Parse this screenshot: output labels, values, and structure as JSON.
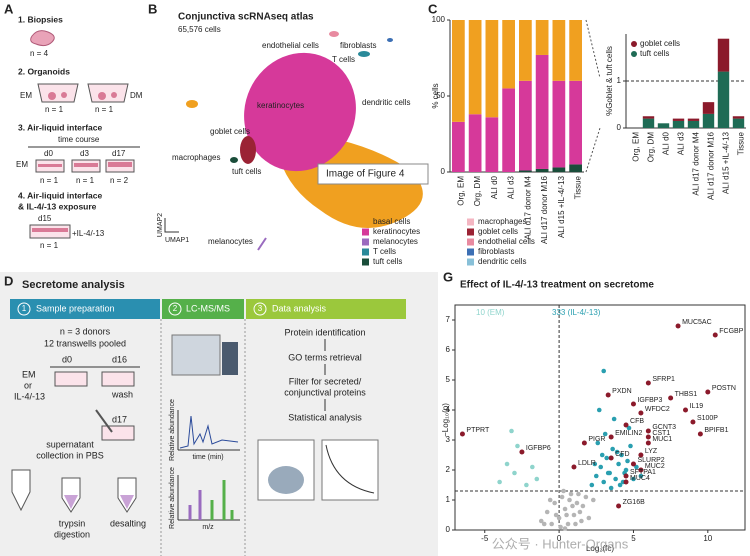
{
  "panelA": {
    "letter": "A",
    "step1": "1. Biopsies",
    "n1": "n = 4",
    "step2": "2. Organoids",
    "em": "EM",
    "dm": "DM",
    "n2a": "n = 1",
    "n2b": "n = 1",
    "step3": "3. Air-liquid interface",
    "timecourse": "time course",
    "em3": "EM",
    "d0": "d0",
    "d3": "d3",
    "d17": "d17",
    "n3a": "n = 1",
    "n3b": "n = 1",
    "n3c": "n = 2",
    "step4": [
      "4. Air-liquid interface",
      "& IL-4/-13 exposure"
    ],
    "d15": "d15",
    "il": "+IL-4/-13",
    "n4": "n = 1"
  },
  "panelB": {
    "letter": "B",
    "title": "Conjunctiva scRNAseq atlas",
    "subtitle": "65,576 cells",
    "clusters": [
      "endothelial cells",
      "fibroblasts",
      "T cells",
      "dendritic cells",
      "keratinocytes",
      "goblet cells",
      "macrophages",
      "tuft cells",
      "melanocytes"
    ],
    "tooltip": "Image of Figure 4",
    "umap2": "UMAP2",
    "umap1": "UMAP1",
    "legend": [
      {
        "name": "basal cells",
        "color": "#f0a020"
      },
      {
        "name": "keratinocytes",
        "color": "#d6399a"
      },
      {
        "name": "melanocytes",
        "color": "#9a6bbf"
      },
      {
        "name": "T cells",
        "color": "#2a8a9a"
      },
      {
        "name": "tuft cells",
        "color": "#1a4d3a"
      },
      {
        "name": "macrophages",
        "color": "#f4b6c2"
      },
      {
        "name": "goblet cells",
        "color": "#9b2335"
      },
      {
        "name": "endothelial cells",
        "color": "#e88aa0"
      },
      {
        "name": "fibroblasts",
        "color": "#3c6fb4"
      },
      {
        "name": "dendritic cells",
        "color": "#88c0d8"
      }
    ]
  },
  "panelC": {
    "letter": "C"
  },
  "chart_data": [
    {
      "type": "bar",
      "stacked": true,
      "ylabel": "% cells",
      "categories": [
        "Org, EM",
        "Org, DM",
        "ALI d0",
        "ALI d3",
        "ALI d17 donor M4",
        "ALI d17 donor M16",
        "ALI d15 +IL-4/-13",
        "Tissue"
      ],
      "series": [
        {
          "color": "#1a4d3a",
          "values": [
            0,
            0,
            0,
            0,
            1,
            2,
            3,
            5
          ]
        },
        {
          "color": "#d6399a",
          "values": [
            33,
            38,
            36,
            55,
            59,
            75,
            57,
            55
          ]
        },
        {
          "color": "#f0a020",
          "values": [
            67,
            62,
            64,
            45,
            40,
            23,
            40,
            40
          ]
        }
      ],
      "ylim": [
        0,
        100
      ],
      "yticks": [
        0,
        50,
        100
      ]
    },
    {
      "type": "bar",
      "stacked": true,
      "ylabel": "%Goblet & tuft cells",
      "categories": [
        "Org, EM",
        "Org, DM",
        "ALI d0",
        "ALI d3",
        "ALI d17 donor M4",
        "ALI d17 donor M16",
        "ALI d15 +IL-4/-13",
        "Tissue"
      ],
      "series": [
        {
          "name": "tuft cells",
          "color": "#1f6b55",
          "values": [
            0,
            0.2,
            0.1,
            0.15,
            0.15,
            0.3,
            1.2,
            0.2
          ]
        },
        {
          "name": "goblet cells",
          "color": "#8b1a2b",
          "values": [
            0,
            0.05,
            0,
            0.05,
            0.05,
            0.25,
            0.7,
            0.05
          ]
        }
      ],
      "ylim": [
        0,
        2
      ],
      "yticks": [
        0,
        1
      ],
      "hline": 1,
      "legend": "top-left"
    },
    {
      "type": "scatter",
      "title": "Effect of IL-4/-13 treatment on secretome",
      "xlabel": "Log₂(fc)",
      "ylabel": "−Log₁₀(p)",
      "count_down": "10 (EM)",
      "count_up": "333 (IL-4/-13)",
      "xlim": [
        -7,
        12.5
      ],
      "xticks": [
        -5,
        0,
        5,
        10
      ],
      "ylim": [
        0,
        7.5
      ],
      "yticks": [
        0,
        1,
        2,
        3,
        4,
        5,
        6,
        7
      ],
      "hline": 1.3,
      "vline": 0,
      "series": [
        {
          "color": "#b5b5b5",
          "x": [
            -1.2,
            -0.8,
            -0.5,
            -0.3,
            0,
            0.2,
            0.4,
            0.6,
            0.8,
            1,
            1.2,
            1.5,
            1.8,
            -0.6,
            0.1,
            0.5,
            0.9,
            1.4,
            -1,
            0.3,
            0.7,
            1.1,
            -0.2,
            1.6,
            2,
            2.3,
            0.4,
            1.3
          ],
          "values": [
            0.3,
            0.6,
            0.2,
            0.9,
            0.4,
            1.1,
            0.7,
            0.2,
            1.2,
            0.5,
            0.9,
            0.3,
            1.1,
            1,
            0.1,
            0.5,
            0.8,
            0.6,
            0.2,
            1.3,
            1,
            0.2,
            0.5,
            0.8,
            0.4,
            1,
            0.05,
            1.2
          ]
        },
        {
          "color": "#2a9fb0",
          "x": [
            2.2,
            2.5,
            2.8,
            3,
            3.2,
            3.4,
            3.6,
            3.8,
            4,
            4.2,
            4.4,
            4.6,
            4.8,
            5,
            5.2,
            2.6,
            3.1,
            3.5,
            3.9,
            4.3,
            4.7,
            2.4,
            3.3,
            3.7,
            4.1,
            2.9,
            4.5,
            5.5,
            3.0,
            2.7
          ],
          "values": [
            1.5,
            1.8,
            2.1,
            1.6,
            2.4,
            1.9,
            2.7,
            1.7,
            2.2,
            2.5,
            1.9,
            2.3,
            2.8,
            1.7,
            2.1,
            2.9,
            3.2,
            1.4,
            2.6,
            1.6,
            3.4,
            2.2,
            1.9,
            3.7,
            1.5,
            2.5,
            2.0,
            1.8,
            5.3,
            4.0
          ]
        },
        {
          "color": "#8fd4cc",
          "x": [
            -4,
            -3.5,
            -3,
            -2.8,
            -2.2,
            -1.8,
            -1.5,
            -3.2
          ],
          "values": [
            1.6,
            2.2,
            1.9,
            2.8,
            1.5,
            2.1,
            1.7,
            3.3
          ]
        }
      ],
      "labeled": {
        "color": "#8b1a2b",
        "labels": [
          "MUC5AC",
          "FCGBP",
          "SFRP1",
          "POSTN",
          "THBS1",
          "PXDN",
          "IGFBP3",
          "IL19",
          "WFDC2",
          "S100P",
          "CFB",
          "GCNT3",
          "BPIFB1",
          "EMILIN2",
          "CST1",
          "PIGR",
          "MUC1",
          "LYZ",
          "CFD",
          "SLURP2",
          "MUC2",
          "SFTPA1",
          "MUC4",
          "LDLR",
          "ZG16B",
          "PTPRT",
          "IGFBP6"
        ],
        "x": [
          8,
          10.5,
          6,
          10,
          7.5,
          3.3,
          5,
          8.5,
          5.5,
          9,
          4.5,
          6,
          9.5,
          3.5,
          6,
          1.7,
          6,
          5.5,
          3.5,
          5,
          5.5,
          4.5,
          4.5,
          1,
          4,
          -6.5,
          -2.5
        ],
        "values": [
          6.8,
          6.5,
          4.9,
          4.6,
          4.4,
          4.5,
          4.2,
          4,
          3.9,
          3.6,
          3.5,
          3.3,
          3.2,
          3.1,
          3.1,
          2.9,
          2.9,
          2.5,
          2.4,
          2.2,
          2,
          1.8,
          1.6,
          2.1,
          0.8,
          3.2,
          2.6
        ]
      }
    }
  ],
  "panelD": {
    "letter": "D",
    "title": "Secretome analysis",
    "steps": [
      {
        "num": "1",
        "label": "Sample preparation"
      },
      {
        "num": "2",
        "label": "LC-MS/MS"
      },
      {
        "num": "3",
        "label": "Data analysis"
      }
    ],
    "donors": "n = 3 donors",
    "pooled": "12 transwells pooled",
    "d0": "d0",
    "d16": "d16",
    "em": "EM",
    "or": "or",
    "il": "IL-4/-13",
    "wash": "wash",
    "d17": "d17",
    "supernatant": [
      "supernatant",
      "collection in PBS"
    ],
    "trypsin": [
      "trypsin",
      "digestion"
    ],
    "desalting": "desalting",
    "rel1": "Relative abundance",
    "time": "time (min)",
    "rel2": "Relative abundance",
    "mz": "m/z",
    "analysis": [
      "Protein identification",
      "GO terms retrieval",
      "Filter for secreted/",
      "conjunctival proteins",
      "Statistical analysis"
    ]
  },
  "panelG": {
    "letter": "G"
  },
  "watermark": "公众号 · Hunter-Organs"
}
